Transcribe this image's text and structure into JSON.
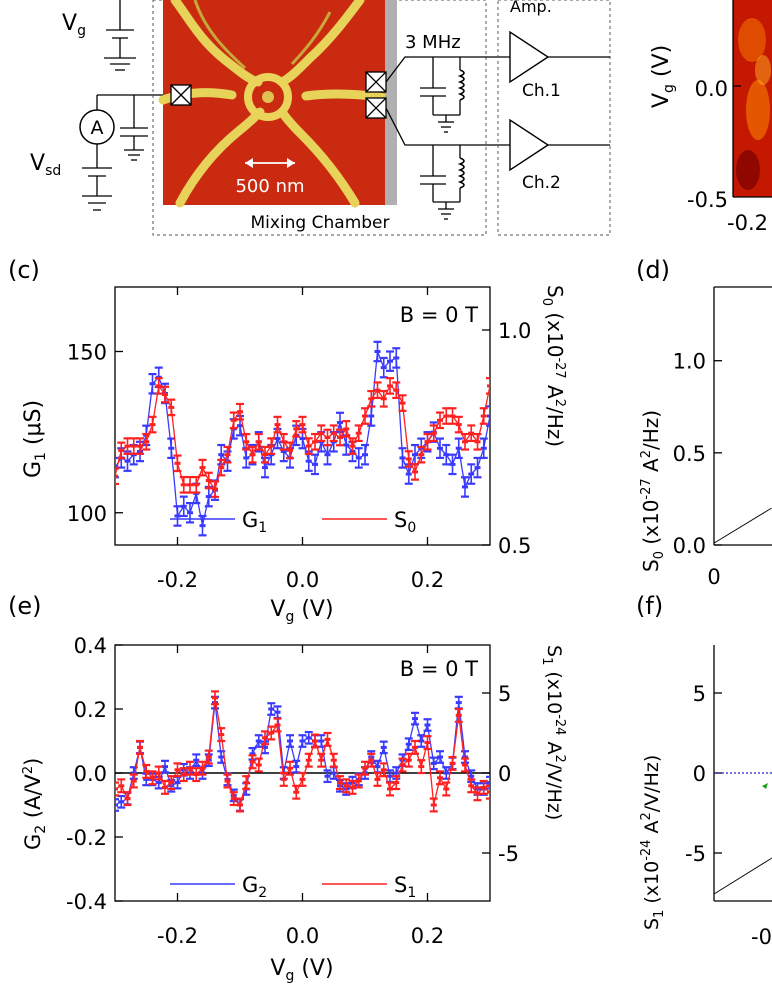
{
  "top": {
    "vg_label": "V",
    "vg_sub": "g",
    "ammeter_symbol": "A",
    "vsd_label": "V",
    "vsd_sub": "sd",
    "scale_bar": "500 nm",
    "mixing_chamber": "Mixing Chamber",
    "frequency": "3 MHz",
    "amp_label": "Amp.",
    "ch1": "Ch.1",
    "ch2": "Ch.2"
  },
  "panel_b": {
    "ylabel_main": "V",
    "ylabel_sub": "g",
    "ylabel_unit": " (V)",
    "yticks": [
      "0.0",
      "-0.5"
    ],
    "xtick": "-0.2",
    "colors": {
      "dark": "#8a0000",
      "mid": "#d42000",
      "hot": "#ff9a00"
    }
  },
  "panel_letters": {
    "c": "(c)",
    "d": "(d)",
    "e": "(e)",
    "f": "(f)"
  },
  "chart_data": [
    {
      "id": "c",
      "type": "line",
      "annotation": "B = 0 T",
      "x": [
        -0.3,
        -0.29,
        -0.28,
        -0.27,
        -0.26,
        -0.25,
        -0.24,
        -0.23,
        -0.22,
        -0.21,
        -0.2,
        -0.19,
        -0.18,
        -0.17,
        -0.16,
        -0.15,
        -0.14,
        -0.13,
        -0.12,
        -0.11,
        -0.1,
        -0.09,
        -0.08,
        -0.07,
        -0.06,
        -0.05,
        -0.04,
        -0.03,
        -0.02,
        -0.01,
        0.0,
        0.01,
        0.02,
        0.03,
        0.04,
        0.05,
        0.06,
        0.07,
        0.08,
        0.09,
        0.1,
        0.11,
        0.12,
        0.13,
        0.14,
        0.15,
        0.16,
        0.17,
        0.18,
        0.19,
        0.2,
        0.21,
        0.22,
        0.23,
        0.24,
        0.25,
        0.26,
        0.27,
        0.28,
        0.29,
        0.3
      ],
      "series": [
        {
          "name": "G",
          "sub": "1",
          "color": "#3a3aff",
          "axis": "left",
          "values": [
            114,
            117,
            116,
            118,
            119,
            124,
            140,
            142,
            137,
            120,
            99,
            102,
            100,
            106,
            96,
            105,
            107,
            118,
            116,
            126,
            127,
            117,
            118,
            122,
            114,
            118,
            123,
            119,
            117,
            124,
            123,
            116,
            115,
            122,
            118,
            122,
            128,
            121,
            119,
            117,
            118,
            130,
            150,
            145,
            147,
            148,
            117,
            112,
            118,
            120,
            122,
            125,
            120,
            118,
            115,
            120,
            108,
            112,
            114,
            120,
            130
          ]
        },
        {
          "name": "S",
          "sub": "0",
          "color": "#ff2020",
          "axis": "right",
          "values": [
            0.66,
            0.72,
            0.73,
            0.73,
            0.73,
            0.74,
            0.78,
            0.87,
            0.85,
            0.82,
            0.69,
            0.64,
            0.64,
            0.64,
            0.68,
            0.65,
            0.63,
            0.68,
            0.71,
            0.79,
            0.81,
            0.74,
            0.71,
            0.74,
            0.71,
            0.73,
            0.78,
            0.74,
            0.72,
            0.77,
            0.78,
            0.73,
            0.74,
            0.76,
            0.75,
            0.76,
            0.75,
            0.77,
            0.73,
            0.76,
            0.8,
            0.84,
            0.86,
            0.84,
            0.87,
            0.86,
            0.83,
            0.7,
            0.67,
            0.71,
            0.74,
            0.76,
            0.79,
            0.8,
            0.8,
            0.78,
            0.74,
            0.76,
            0.74,
            0.8,
            0.87
          ]
        }
      ],
      "xlim": [
        -0.3,
        0.3
      ],
      "ylim_left": [
        90,
        170
      ],
      "ylim_right": [
        0.5,
        1.1
      ],
      "xticks": [
        "-0.2",
        "0.0",
        "0.2"
      ],
      "yticks_left": [
        "100",
        "150"
      ],
      "yticks_right": [
        "0.5",
        "1.0"
      ],
      "ylabel_left": {
        "main": "G",
        "sub": "1",
        "unit": " (μS)"
      },
      "ylabel_right": {
        "main": "S",
        "sub": "0",
        "pre": " (x10",
        "exp": "-27",
        "mid": " A",
        "exp2": "2",
        "post": "/Hz)"
      }
    },
    {
      "id": "d",
      "type": "line",
      "yticks": [
        "0.0",
        "0.5",
        "1.0"
      ],
      "xtick": "0",
      "ylabel": {
        "main": "S",
        "sub": "0",
        "pre": " (x10",
        "exp": "-27",
        "mid": " A",
        "exp2": "2",
        "post": "/Hz)"
      },
      "xlim": [
        0,
        1
      ],
      "ylim": [
        0,
        1.4
      ],
      "line": {
        "x": [
          0,
          0.23
        ],
        "y": [
          0.01,
          0.2
        ]
      }
    },
    {
      "id": "e",
      "type": "line",
      "annotation": "B = 0 T",
      "x": [
        -0.3,
        -0.29,
        -0.28,
        -0.27,
        -0.26,
        -0.25,
        -0.24,
        -0.23,
        -0.22,
        -0.21,
        -0.2,
        -0.19,
        -0.18,
        -0.17,
        -0.16,
        -0.15,
        -0.14,
        -0.13,
        -0.12,
        -0.11,
        -0.1,
        -0.09,
        -0.08,
        -0.07,
        -0.06,
        -0.05,
        -0.04,
        -0.03,
        -0.02,
        -0.01,
        0.0,
        0.01,
        0.02,
        0.03,
        0.04,
        0.05,
        0.06,
        0.07,
        0.08,
        0.09,
        0.1,
        0.11,
        0.12,
        0.13,
        0.14,
        0.15,
        0.16,
        0.17,
        0.18,
        0.19,
        0.2,
        0.21,
        0.22,
        0.23,
        0.24,
        0.25,
        0.26,
        0.27,
        0.28,
        0.29,
        0.3
      ],
      "series": [
        {
          "name": "G",
          "sub": "2",
          "color": "#3a3aff",
          "axis": "left",
          "values": [
            -0.1,
            -0.09,
            -0.08,
            0.0,
            0.08,
            -0.02,
            -0.02,
            -0.03,
            0.02,
            -0.04,
            -0.03,
            0.01,
            0.0,
            0.04,
            0.0,
            0.04,
            0.22,
            0.05,
            -0.02,
            -0.07,
            -0.1,
            -0.05,
            0.06,
            0.1,
            0.08,
            0.2,
            0.19,
            0.0,
            0.1,
            0.02,
            0.1,
            0.11,
            0.1,
            0.1,
            -0.01,
            0.0,
            -0.04,
            -0.05,
            -0.03,
            -0.02,
            0.0,
            0.05,
            0.02,
            0.08,
            -0.01,
            0.0,
            0.04,
            0.09,
            0.17,
            0.1,
            0.15,
            0.03,
            0.05,
            0.0,
            0.03,
            0.22,
            0.05,
            -0.01,
            -0.05,
            -0.05,
            -0.03
          ]
        },
        {
          "name": "S",
          "sub": "1",
          "color": "#ff2020",
          "axis": "right",
          "values": [
            -1.0,
            -0.8,
            -1.6,
            -0.5,
            1.6,
            0.1,
            -0.3,
            0.0,
            -0.9,
            -0.6,
            0.2,
            -0.1,
            0.3,
            -0.1,
            0.3,
            1.0,
            4.7,
            2.4,
            -0.5,
            -1.6,
            -2.0,
            -0.6,
            0.7,
            0.5,
            2.2,
            2.5,
            3.0,
            -0.4,
            0.3,
            -1.2,
            -0.4,
            0.8,
            2.0,
            0.8,
            2.1,
            0.8,
            -0.6,
            -0.8,
            -0.9,
            -0.5,
            0.3,
            0.8,
            -0.4,
            0.2,
            -1.0,
            -0.6,
            0.5,
            0.8,
            1.6,
            0.4,
            1.9,
            -2.0,
            -0.3,
            -1.0,
            0.6,
            3.6,
            0.5,
            -0.8,
            -1.3,
            -0.9,
            -1.2
          ]
        }
      ],
      "xlim": [
        -0.3,
        0.3
      ],
      "ylim_left": [
        -0.4,
        0.4
      ],
      "ylim_right": [
        -8,
        8
      ],
      "xticks": [
        "-0.2",
        "0.0",
        "0.2"
      ],
      "yticks_left": [
        "-0.4",
        "-0.2",
        "0.0",
        "0.2",
        "0.4"
      ],
      "yticks_right": [
        "-5",
        "0",
        "5"
      ],
      "ylabel_left": {
        "main": "G",
        "sub": "2",
        "unit": " (A/V",
        "exp": "2",
        "post": ")"
      },
      "ylabel_right": {
        "main": "S",
        "sub": "1",
        "pre": " (x10",
        "exp": "-24",
        "mid": " A",
        "exp2": "2",
        "post": "/V/Hz)"
      },
      "xlabel": {
        "main": "V",
        "sub": "g",
        "unit": " (V)"
      }
    },
    {
      "id": "f",
      "type": "line",
      "yticks": [
        "5",
        "0",
        "-5"
      ],
      "xtick": "-0",
      "ylabel": {
        "main": "S",
        "sub": "1",
        "pre": " (x10",
        "exp": "-24",
        "mid": " A",
        "exp2": "2",
        "post": "/V/Hz)"
      },
      "ylim": [
        -8,
        8
      ]
    }
  ],
  "xlabel_c": {
    "main": "V",
    "sub": "g",
    "unit": " (V)"
  }
}
